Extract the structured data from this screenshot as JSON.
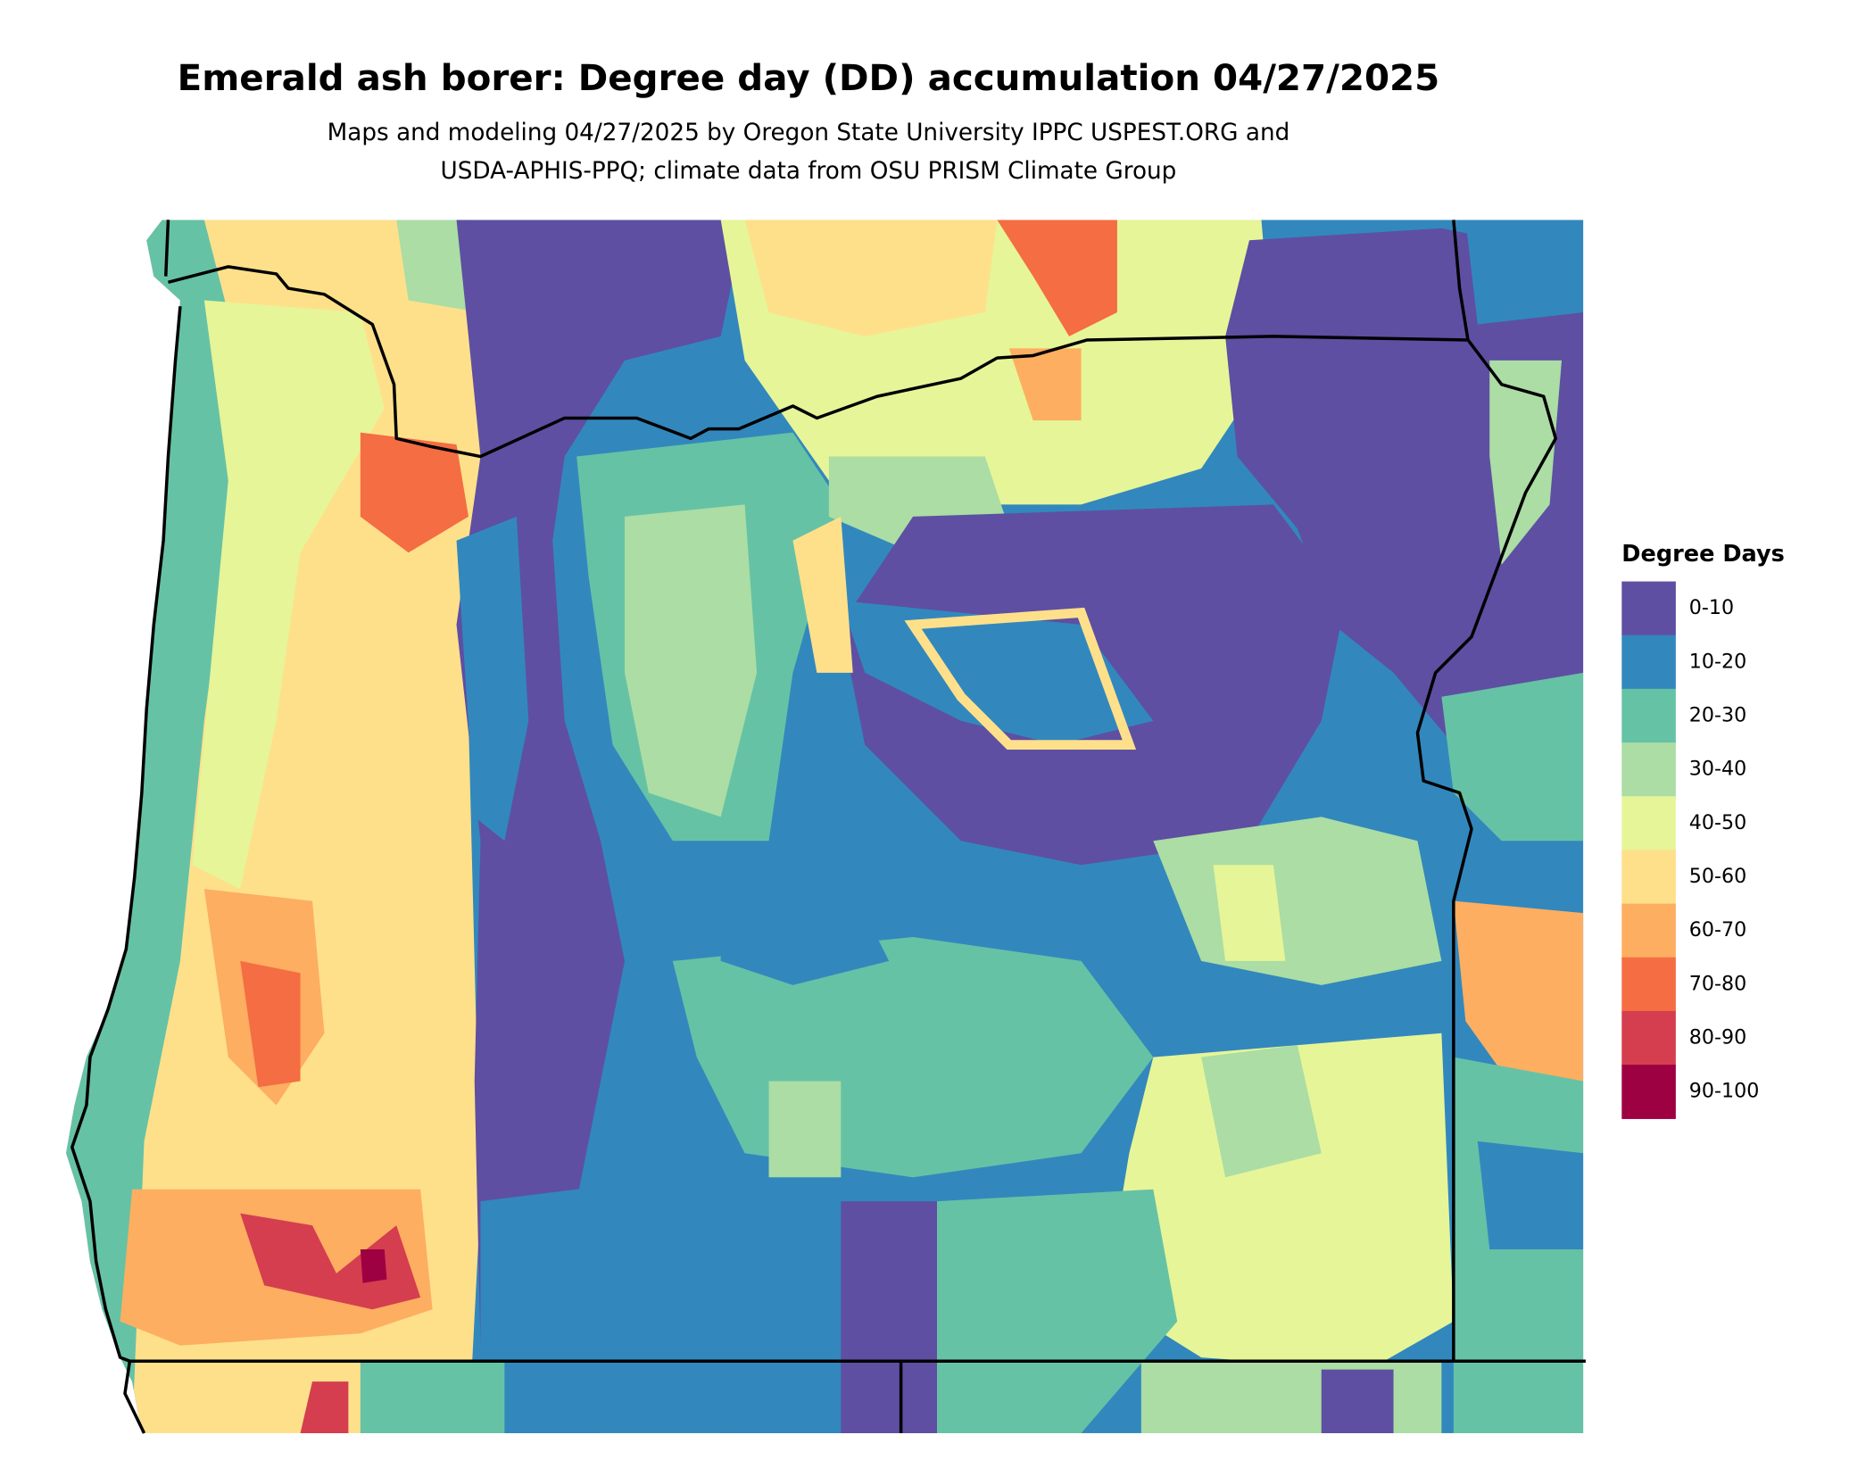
{
  "title": "Emerald ash borer: Degree day (DD) accumulation 04/27/2025",
  "subtitle": [
    "Maps and modeling 04/27/2025 by Oregon State University IPPC USPEST.ORG and",
    "USDA-APHIS-PPQ; climate data from OSU PRISM Climate Group"
  ],
  "legend": {
    "title": "Degree Days",
    "items": [
      {
        "label": "0-10",
        "color": "#5e4fa2"
      },
      {
        "label": "10-20",
        "color": "#3288bd"
      },
      {
        "label": "20-30",
        "color": "#66c2a5"
      },
      {
        "label": "30-40",
        "color": "#abdda4"
      },
      {
        "label": "40-50",
        "color": "#e6f598"
      },
      {
        "label": "50-60",
        "color": "#fee08b"
      },
      {
        "label": "60-70",
        "color": "#fdae61"
      },
      {
        "label": "70-80",
        "color": "#f46d43"
      },
      {
        "label": "80-90",
        "color": "#d53e4f"
      },
      {
        "label": "90-100",
        "color": "#9e0142"
      }
    ]
  }
}
